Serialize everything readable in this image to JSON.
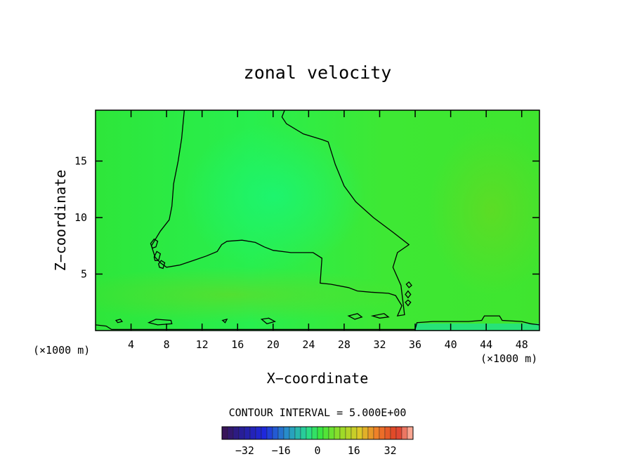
{
  "chart_data": {
    "type": "heatmap",
    "title": "zonal velocity",
    "xlabel": "X−coordinate",
    "ylabel": "Z−coordinate",
    "x_unit_left": "(×1000 m)",
    "x_unit_right": "(×1000 m)",
    "xlim": [
      0,
      50
    ],
    "ylim": [
      0,
      19.5
    ],
    "xticks": [
      4,
      8,
      12,
      16,
      20,
      24,
      28,
      32,
      36,
      40,
      44,
      48
    ],
    "yticks": [
      5,
      10,
      15
    ],
    "contour_interval_label": "CONTOUR INTERVAL = 5.000E+00",
    "colorbar": {
      "range": [
        -42,
        42
      ],
      "ticks": [
        -32,
        -16,
        0,
        16,
        32
      ],
      "tick_labels": [
        "−32",
        "−16",
        "0",
        "16",
        "32"
      ]
    },
    "zero_contour": [
      [
        [
          10.0,
          19.5
        ],
        [
          9.7,
          17.0
        ],
        [
          9.3,
          15.0
        ],
        [
          8.8,
          13.0
        ],
        [
          8.6,
          11.0
        ],
        [
          8.3,
          9.8
        ],
        [
          7.3,
          8.8
        ],
        [
          6.3,
          7.5
        ],
        [
          6.7,
          6.5
        ],
        [
          7.3,
          6.0
        ],
        [
          8.0,
          5.6
        ],
        [
          9.5,
          5.8
        ],
        [
          11.0,
          6.2
        ],
        [
          12.5,
          6.6
        ],
        [
          13.7,
          7.0
        ],
        [
          14.2,
          7.6
        ],
        [
          14.8,
          7.9
        ],
        [
          16.5,
          8.0
        ],
        [
          18.0,
          7.8
        ],
        [
          19.0,
          7.4
        ],
        [
          20.0,
          7.1
        ],
        [
          22.0,
          6.9
        ],
        [
          24.5,
          6.9
        ],
        [
          25.5,
          6.4
        ],
        [
          25.3,
          4.2
        ],
        [
          26.5,
          4.1
        ],
        [
          28.5,
          3.8
        ],
        [
          29.5,
          3.5
        ],
        [
          31.0,
          3.4
        ],
        [
          33.0,
          3.3
        ],
        [
          33.8,
          3.1
        ],
        [
          34.5,
          2.2
        ],
        [
          34.0,
          1.3
        ],
        [
          34.8,
          1.4
        ],
        [
          34.4,
          4.0
        ],
        [
          33.5,
          5.6
        ],
        [
          34.0,
          6.9
        ],
        [
          35.3,
          7.6
        ],
        [
          33.5,
          8.7
        ],
        [
          31.3,
          10.0
        ],
        [
          29.3,
          11.4
        ],
        [
          28.0,
          12.8
        ],
        [
          27.0,
          14.7
        ],
        [
          26.2,
          16.7
        ],
        [
          25.5,
          16.9
        ],
        [
          23.4,
          17.4
        ],
        [
          21.5,
          18.3
        ],
        [
          21.0,
          18.9
        ],
        [
          21.3,
          19.5
        ]
      ]
    ],
    "closed_contours": [
      [
        [
          6.2,
          7.7
        ],
        [
          6.6,
          8.1
        ],
        [
          7.0,
          7.9
        ],
        [
          6.8,
          7.4
        ],
        [
          6.4,
          7.3
        ],
        [
          6.2,
          7.7
        ]
      ],
      [
        [
          6.6,
          6.5
        ],
        [
          6.9,
          7.0
        ],
        [
          7.3,
          6.8
        ],
        [
          7.1,
          6.2
        ],
        [
          6.7,
          6.2
        ],
        [
          6.6,
          6.5
        ]
      ],
      [
        [
          7.1,
          5.9
        ],
        [
          7.4,
          6.2
        ],
        [
          7.8,
          6.0
        ],
        [
          7.6,
          5.5
        ],
        [
          7.2,
          5.6
        ],
        [
          7.1,
          5.9
        ]
      ],
      [
        [
          35.0,
          4.1
        ],
        [
          35.3,
          4.3
        ],
        [
          35.6,
          4.0
        ],
        [
          35.3,
          3.8
        ],
        [
          35.0,
          4.1
        ]
      ],
      [
        [
          34.9,
          3.2
        ],
        [
          35.2,
          3.5
        ],
        [
          35.5,
          3.2
        ],
        [
          35.2,
          2.9
        ],
        [
          34.9,
          3.2
        ]
      ],
      [
        [
          34.9,
          2.5
        ],
        [
          35.2,
          2.7
        ],
        [
          35.5,
          2.5
        ],
        [
          35.2,
          2.2
        ],
        [
          34.9,
          2.5
        ]
      ],
      [
        [
          2.3,
          0.9
        ],
        [
          2.8,
          1.0
        ],
        [
          3.0,
          0.8
        ],
        [
          2.5,
          0.7
        ],
        [
          2.3,
          0.9
        ]
      ],
      [
        [
          6.0,
          0.7
        ],
        [
          6.8,
          1.0
        ],
        [
          8.5,
          0.9
        ],
        [
          8.6,
          0.6
        ],
        [
          7.0,
          0.5
        ],
        [
          6.0,
          0.7
        ]
      ],
      [
        [
          18.7,
          1.0
        ],
        [
          19.5,
          1.1
        ],
        [
          20.2,
          0.8
        ],
        [
          19.3,
          0.6
        ],
        [
          18.7,
          1.0
        ]
      ],
      [
        [
          28.5,
          1.3
        ],
        [
          29.5,
          1.5
        ],
        [
          30.0,
          1.2
        ],
        [
          29.2,
          1.0
        ],
        [
          28.5,
          1.3
        ]
      ],
      [
        [
          31.2,
          1.3
        ],
        [
          32.5,
          1.5
        ],
        [
          33.0,
          1.2
        ],
        [
          32.0,
          1.1
        ],
        [
          31.2,
          1.3
        ]
      ],
      [
        [
          14.3,
          0.9
        ],
        [
          14.8,
          1.0
        ],
        [
          14.6,
          0.7
        ],
        [
          14.3,
          0.9
        ]
      ]
    ],
    "bottom_contour": [
      [
        0,
        0.5
      ],
      [
        1.2,
        0.4
      ],
      [
        1.8,
        0.1
      ],
      [
        36.0,
        0.1
      ],
      [
        36.2,
        0.7
      ],
      [
        38.0,
        0.8
      ],
      [
        42.0,
        0.8
      ],
      [
        43.5,
        0.9
      ],
      [
        43.8,
        1.3
      ],
      [
        45.5,
        1.3
      ],
      [
        45.8,
        0.9
      ],
      [
        48.0,
        0.8
      ],
      [
        49.0,
        0.6
      ],
      [
        50.0,
        0.5
      ]
    ]
  }
}
